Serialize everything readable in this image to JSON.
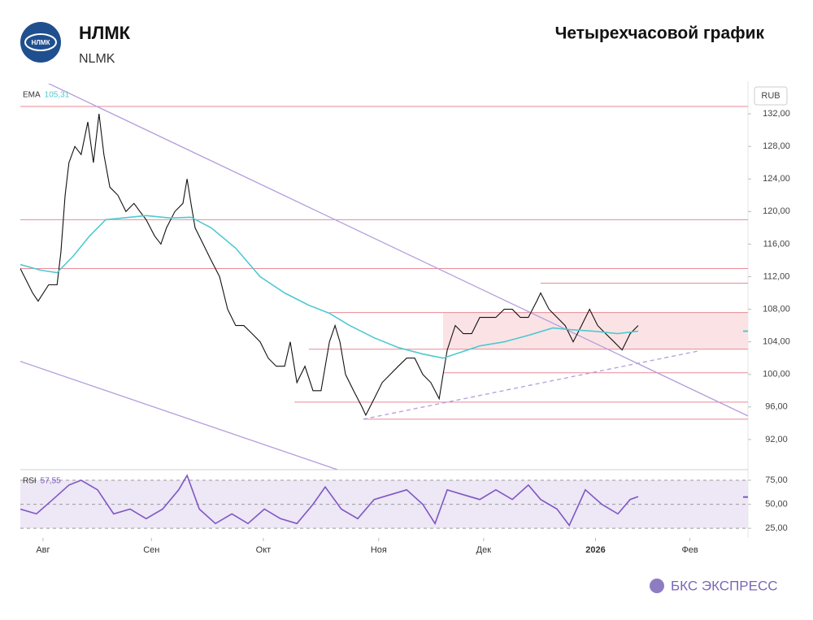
{
  "header": {
    "logo_text": "НЛМК",
    "title": "НЛМК",
    "subtitle": "NLMK",
    "chart_kind": "Четырехчасовой график"
  },
  "footer": {
    "brand": "БКС ЭКСПРЕСС"
  },
  "chart_data": [
    {
      "type": "line",
      "currency": "RUB",
      "xlim": [
        -6.5,
        201.6
      ],
      "ylim": [
        88.3,
        135.7
      ],
      "yticks": [
        {
          "value": 132,
          "label": "132,00"
        },
        {
          "value": 128,
          "label": "128,00"
        },
        {
          "value": 124,
          "label": "124,00"
        },
        {
          "value": 120,
          "label": "120,00"
        },
        {
          "value": 116,
          "label": "116,00"
        },
        {
          "value": 112,
          "label": "112,00"
        },
        {
          "value": 108,
          "label": "108,00"
        },
        {
          "value": 104,
          "label": "104,00"
        },
        {
          "value": 100,
          "label": "100,00"
        },
        {
          "value": 96,
          "label": "96,00"
        },
        {
          "value": 92,
          "label": "92,00"
        }
      ],
      "series": [
        {
          "color": "#111111",
          "x": [
            -6.5,
            -3,
            -1.4,
            1.6,
            4,
            5.1,
            6.3,
            7.4,
            9.1,
            10.9,
            12.8,
            14.4,
            16,
            17.4,
            19.1,
            21.4,
            23.7,
            26,
            27.7,
            29.5,
            31.9,
            33.7,
            35.3,
            37.7,
            40,
            41.2,
            42.3,
            43.5,
            45.8,
            48.1,
            50.5,
            52.8,
            55.1,
            57.4,
            59.8,
            62.1,
            64.4,
            66.7,
            69.1,
            70.7,
            72.6,
            74.9,
            77.2,
            79.5,
            81.9,
            83.5,
            84.9,
            86.5,
            88.8,
            91.2,
            92.3,
            94.7,
            97,
            99.3,
            101.6,
            104,
            106.3,
            108.6,
            110.9,
            113.3,
            114.4,
            115.6,
            117.9,
            120.2,
            122.6,
            124.9,
            127.2,
            129.5,
            131.9,
            134.2,
            136.5,
            138.8,
            141.2,
            142.3,
            144.7,
            147,
            149.3,
            151.6,
            154,
            156.3,
            158.6,
            160.9,
            163.3,
            165.6,
            167.9,
            170.2
          ],
          "values": [
            113,
            110,
            109,
            111,
            111,
            115,
            122,
            126,
            128,
            127,
            131,
            126,
            132,
            127,
            123,
            122,
            120,
            121,
            120,
            119,
            117,
            116,
            118,
            120,
            121,
            124,
            121,
            118,
            116,
            114,
            112,
            108,
            106,
            106,
            105,
            104,
            102,
            101,
            101,
            104,
            99,
            101,
            98,
            98,
            104,
            106,
            104,
            100,
            98,
            96,
            95,
            97,
            99,
            100,
            101,
            102,
            102,
            100,
            99,
            97,
            100,
            103,
            106,
            105,
            105,
            107,
            107,
            107,
            108,
            108,
            107,
            107,
            109,
            110,
            108,
            107,
            106,
            104,
            106,
            108,
            106,
            105,
            104,
            103,
            105,
            106
          ]
        },
        {
          "name": "EMA",
          "color": "#4fc9d0",
          "current": {
            "value": 105.31,
            "label": "105,31"
          },
          "x": [
            -6.5,
            -0.7,
            4,
            8.6,
            13.3,
            17.9,
            22.6,
            29.5,
            36.5,
            42.3,
            48.1,
            55.1,
            62.1,
            69.1,
            76,
            81.9,
            87.7,
            94.7,
            101.6,
            108.6,
            114.4,
            117.9,
            124.9,
            131.9,
            138.8,
            145.8,
            150.5,
            157.4,
            164.4,
            170.2
          ],
          "values": [
            113.5,
            112.8,
            112.5,
            114.5,
            117,
            119,
            119.2,
            119.5,
            119.2,
            119.3,
            118,
            115.5,
            112,
            110,
            108.5,
            107.5,
            106,
            104.5,
            103.3,
            102.5,
            102,
            102.5,
            103.5,
            104,
            104.8,
            105.7,
            105.5,
            105.3,
            105,
            105.3
          ]
        }
      ],
      "levels": [
        {
          "value": 132.9,
          "from": -6.5
        },
        {
          "value": 119,
          "from": -6.5
        },
        {
          "value": 113,
          "from": -6.5
        },
        {
          "value": 111.2,
          "from": 142.3
        },
        {
          "value": 107.6,
          "from": 81.9
        },
        {
          "value": 103.1,
          "from": 76
        },
        {
          "value": 100.2,
          "from": 114.4
        },
        {
          "value": 96.6,
          "from": 71.9
        },
        {
          "value": 94.5,
          "from": 91.6
        }
      ],
      "level_color": "#e88a95",
      "zone": {
        "from": 114.4,
        "low": 103.1,
        "high": 107.6,
        "color": "#fbe3e5"
      },
      "trendlines": [
        {
          "x": [
            1.2,
            201.6
          ],
          "values": [
            135.8,
            94.9
          ],
          "dashed": false
        },
        {
          "x": [
            -6.5,
            84.2
          ],
          "values": [
            101.6,
            88.3
          ],
          "dashed": false
        },
        {
          "x": [
            91.6,
            187.7
          ],
          "values": [
            94.5,
            102.9
          ],
          "dashed": true
        }
      ],
      "trend_color": "#b39ddb"
    },
    {
      "type": "line",
      "xlim": [
        -6.5,
        201.6
      ],
      "ylim": [
        15,
        86
      ],
      "yticks": [
        {
          "value": 75,
          "label": "75,00"
        },
        {
          "value": 50,
          "label": "50,00"
        },
        {
          "value": 25,
          "label": "25,00"
        }
      ],
      "xticks": [
        {
          "value": 0,
          "label": "Авг"
        },
        {
          "value": 31,
          "label": "Сен"
        },
        {
          "value": 63,
          "label": "Окт"
        },
        {
          "value": 96,
          "label": "Ноя"
        },
        {
          "value": 126,
          "label": "Дек"
        },
        {
          "value": 158,
          "label": "2026"
        },
        {
          "value": 185,
          "label": "Фев"
        }
      ],
      "series": [
        {
          "name": "RSI",
          "color": "#7e57c2",
          "current": {
            "value": 57.55,
            "label": "57,55"
          },
          "x": [
            -6.5,
            -1.9,
            2.8,
            7.4,
            10.9,
            15.6,
            20.2,
            24.9,
            29.5,
            34.2,
            38.8,
            41.2,
            44.7,
            49.3,
            54,
            58.6,
            63.3,
            67.9,
            72.6,
            77.2,
            80.7,
            85.3,
            90,
            94.7,
            99.3,
            104,
            108.6,
            112.1,
            115.6,
            120.2,
            124.9,
            129.5,
            134.2,
            138.8,
            142.3,
            147,
            150.5,
            155.1,
            159.8,
            164.4,
            167.9,
            170.2
          ],
          "values": [
            45,
            40,
            55,
            70,
            75,
            65,
            40,
            45,
            35,
            45,
            65,
            80,
            45,
            30,
            40,
            30,
            45,
            35,
            30,
            50,
            68,
            45,
            35,
            55,
            60,
            65,
            50,
            30,
            65,
            60,
            55,
            65,
            55,
            70,
            55,
            45,
            28,
            65,
            50,
            40,
            55,
            58
          ]
        }
      ],
      "band_color": "#ede7f6"
    }
  ]
}
